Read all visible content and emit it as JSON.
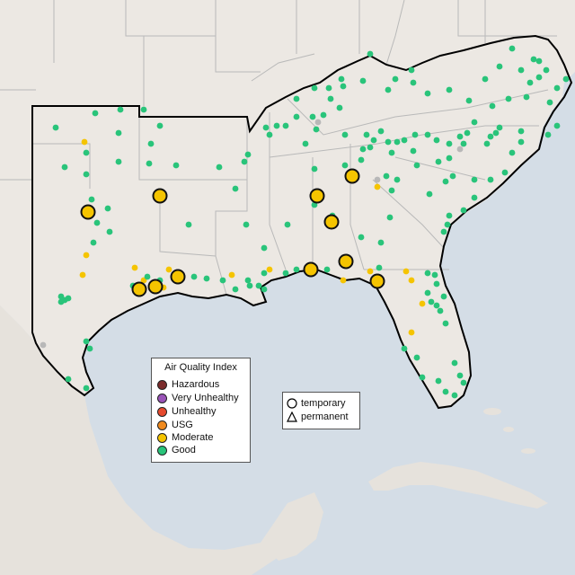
{
  "colors": {
    "land": "#ece8e3",
    "water": "#d4dde6",
    "state_border": "#b9b9b9",
    "region_outline": "#000000",
    "good": "#29c47a",
    "moderate": "#f5c400",
    "usg": "#f08a1e",
    "unhealthy": "#e64a2e",
    "very_unhealthy": "#9a54b8",
    "hazardous": "#7b2c2c",
    "missing": "#b8b8b8"
  },
  "aqi_legend": {
    "title": "Air Quality Index",
    "items": [
      {
        "label": "Hazardous",
        "color": "#7b2c2c"
      },
      {
        "label": "Very Unhealthy",
        "color": "#9a54b8"
      },
      {
        "label": "Unhealthy",
        "color": "#e64a2e"
      },
      {
        "label": "USG",
        "color": "#f08a1e"
      },
      {
        "label": "Moderate",
        "color": "#f5c400"
      },
      {
        "label": "Good",
        "color": "#29c47a"
      }
    ]
  },
  "shape_legend": {
    "items": [
      {
        "label": "temporary",
        "shape": "circle"
      },
      {
        "label": "permanent",
        "shape": "triangle"
      }
    ]
  }
}
